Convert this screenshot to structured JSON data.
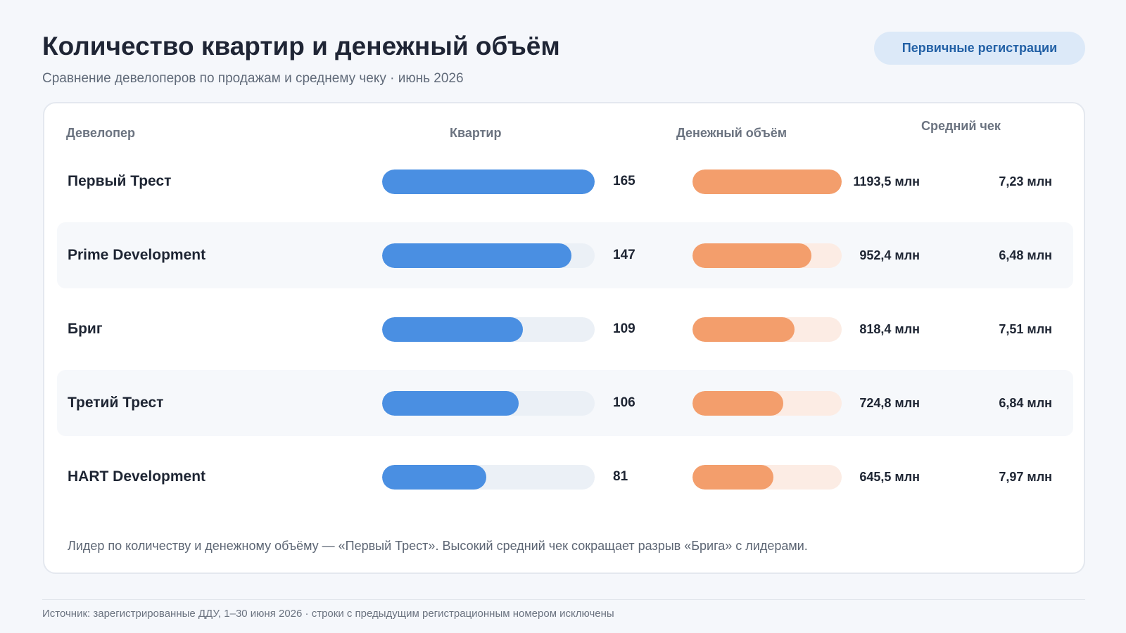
{
  "header": {
    "title": "Количество квартир и денежный объём",
    "subtitle": "Сравнение девелоперов по продажам и среднему чеку · июнь 2026",
    "pill_label": "Первичные регистрации"
  },
  "table": {
    "columns": {
      "developer": "Девелопер",
      "qty": "Квартир",
      "money": "Денежный объём",
      "avg": "Средний чек"
    },
    "rows": [
      {
        "name": "Первый Трест",
        "qty": "165",
        "money": "1193,5 млн",
        "avg": "7,23 млн"
      },
      {
        "name": "Prime Development",
        "qty": "147",
        "money": "952,4 млн",
        "avg": "6,48 млн"
      },
      {
        "name": "Бриг",
        "qty": "109",
        "money": "818,4 млн",
        "avg": "7,51 млн"
      },
      {
        "name": "Третий Трест",
        "qty": "106",
        "money": "724,8 млн",
        "avg": "6,84 млн"
      },
      {
        "name": "HART Development",
        "qty": "81",
        "money": "645,5 млн",
        "avg": "7,97 млн"
      }
    ]
  },
  "note": "Лидер по количеству и денежному объёму — «Первый Трест». Высокий средний чек сокращает разрыв «Брига» с лидерами.",
  "footer": "Источник: зарегистрированные ДДУ, 1–30 июня 2026 · строки с предыдущим регистрационным номером исключены",
  "colors": {
    "qty_bar": "#4a8fe2",
    "money_bar": "#f39e6c",
    "pill_bg": "#dce9f8",
    "pill_text": "#2361a6"
  },
  "chart_data": {
    "type": "bar",
    "categories": [
      "Первый Трест",
      "Prime Development",
      "Бриг",
      "Третий Трест",
      "HART Development"
    ],
    "series": [
      {
        "name": "Квартир",
        "values": [
          165,
          147,
          109,
          106,
          81
        ]
      },
      {
        "name": "Денежный объём",
        "unit": "млн",
        "values": [
          1193.5,
          952.4,
          818.4,
          724.8,
          645.5
        ]
      },
      {
        "name": "Средний чек",
        "unit": "млн",
        "values": [
          7.23,
          6.48,
          7.51,
          6.84,
          7.97
        ]
      }
    ],
    "title": "Количество квартир и денежный объём",
    "subtitle": "Сравнение девелоперов по продажам и среднему чеку · июнь 2026",
    "orientation": "horizontal",
    "grid": false
  }
}
